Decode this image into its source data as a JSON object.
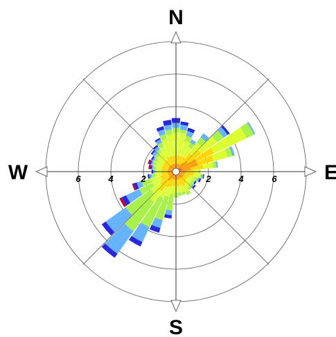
{
  "chart_data": {
    "type": "polar-bar",
    "title": "",
    "cardinals": {
      "north": "N",
      "east": "E",
      "south": "S",
      "west": "W"
    },
    "radial_axis": {
      "max": 8,
      "rings": [
        2,
        4,
        6,
        8
      ],
      "tick_labels": [
        "2",
        "4",
        "6"
      ],
      "grid": true
    },
    "direction_bin_width_deg": 10,
    "band_colors": [
      "#ff4d00",
      "#ff9b00",
      "#ffd700",
      "#dcff32",
      "#aaf04a",
      "#64b4ff",
      "#2828e0",
      "#cc0033"
    ],
    "directions": [
      {
        "dir": 0,
        "bands": [
          0.2,
          0.3,
          0.5,
          1.4,
          0.3,
          0.3,
          0.3,
          0
        ]
      },
      {
        "dir": 10,
        "bands": [
          0.2,
          0.3,
          0.5,
          1.4,
          0.2,
          0.3,
          0.2,
          0
        ]
      },
      {
        "dir": 20,
        "bands": [
          0.2,
          0.3,
          0.5,
          1.0,
          0.3,
          0.3,
          0.2,
          0
        ]
      },
      {
        "dir": 30,
        "bands": [
          0.2,
          0.3,
          0.5,
          0.7,
          0.3,
          0.2,
          0,
          0
        ]
      },
      {
        "dir": 40,
        "bands": [
          0.2,
          0.5,
          0.7,
          0.8,
          0.4,
          0.3,
          0,
          0
        ]
      },
      {
        "dir": 50,
        "bands": [
          0.3,
          0.6,
          1.0,
          1.2,
          0.5,
          0.3,
          0.15,
          0
        ]
      },
      {
        "dir": 60,
        "bands": [
          0.4,
          1.0,
          1.2,
          2.2,
          0.5,
          0.1,
          0,
          0
        ]
      },
      {
        "dir": 70,
        "bands": [
          0.4,
          1.0,
          1.0,
          0.9,
          0.3,
          0.15,
          0,
          0
        ]
      },
      {
        "dir": 80,
        "bands": [
          0.3,
          0.6,
          0.8,
          0.6,
          0.2,
          0.1,
          0,
          0
        ]
      },
      {
        "dir": 90,
        "bands": [
          0.2,
          0.4,
          0.5,
          0.3,
          0.1,
          0,
          0,
          0
        ]
      },
      {
        "dir": 100,
        "bands": [
          0.2,
          0.4,
          0.5,
          0.4,
          0.1,
          0.1,
          0.05,
          0
        ]
      },
      {
        "dir": 110,
        "bands": [
          0.2,
          0.3,
          0.4,
          0.3,
          0.2,
          0.1,
          0.1,
          0
        ]
      },
      {
        "dir": 120,
        "bands": [
          0.2,
          0.3,
          0.3,
          0.3,
          0.2,
          0,
          0.1,
          0
        ]
      },
      {
        "dir": 130,
        "bands": [
          0.2,
          0.3,
          0.3,
          0.3,
          0.2,
          0.1,
          0.1,
          0
        ]
      },
      {
        "dir": 140,
        "bands": [
          0.2,
          0.3,
          0.4,
          0.3,
          0.2,
          0,
          0,
          0
        ]
      },
      {
        "dir": 150,
        "bands": [
          0.2,
          0.3,
          0.5,
          0.4,
          0.2,
          0,
          0,
          0
        ]
      },
      {
        "dir": 160,
        "bands": [
          0.2,
          0.3,
          0.4,
          0.4,
          0.2,
          0,
          0,
          0
        ]
      },
      {
        "dir": 170,
        "bands": [
          0.2,
          0.3,
          0.4,
          0.4,
          0.2,
          0,
          0,
          0
        ]
      },
      {
        "dir": 180,
        "bands": [
          0.2,
          0.3,
          0.4,
          0.4,
          0.3,
          0,
          0,
          0
        ]
      },
      {
        "dir": 190,
        "bands": [
          0.2,
          0.3,
          0.4,
          0.5,
          1.0,
          0.3,
          0.2,
          0
        ]
      },
      {
        "dir": 200,
        "bands": [
          0.2,
          0.3,
          0.5,
          0.6,
          1.5,
          0.5,
          0.3,
          0
        ]
      },
      {
        "dir": 210,
        "bands": [
          0.2,
          0.3,
          0.6,
          0.7,
          2.0,
          1.0,
          0.3,
          0
        ]
      },
      {
        "dir": 220,
        "bands": [
          0.3,
          0.4,
          0.8,
          0.8,
          2.2,
          1.7,
          0.3,
          0
        ]
      },
      {
        "dir": 230,
        "bands": [
          0.2,
          0.3,
          0.7,
          0.7,
          1.9,
          1.5,
          0.3,
          0
        ]
      },
      {
        "dir": 240,
        "bands": [
          0.2,
          0.3,
          0.5,
          0.6,
          0.9,
          0.9,
          0.3,
          0.15
        ]
      },
      {
        "dir": 250,
        "bands": [
          0.2,
          0.3,
          0.5,
          0.6,
          0.6,
          0.3,
          0.2,
          0.1
        ]
      },
      {
        "dir": 260,
        "bands": [
          0.2,
          0.3,
          0.4,
          0.4,
          0.2,
          0.15,
          0.1,
          0
        ]
      },
      {
        "dir": 270,
        "bands": [
          0.2,
          0.3,
          0.4,
          0.3,
          0.1,
          0.1,
          0.1,
          0
        ]
      },
      {
        "dir": 280,
        "bands": [
          0.2,
          0.3,
          0.4,
          0.3,
          0.2,
          0.1,
          0.1,
          0.1
        ]
      },
      {
        "dir": 290,
        "bands": [
          0.2,
          0.3,
          0.4,
          0.4,
          0.2,
          0.1,
          0.1,
          0.1
        ]
      },
      {
        "dir": 300,
        "bands": [
          0.2,
          0.3,
          0.4,
          0.4,
          0.2,
          0.1,
          0.1,
          0
        ]
      },
      {
        "dir": 310,
        "bands": [
          0.2,
          0.3,
          0.4,
          0.5,
          0.2,
          0.2,
          0.1,
          0
        ]
      },
      {
        "dir": 320,
        "bands": [
          0.2,
          0.3,
          0.4,
          0.6,
          0.2,
          0.2,
          0.1,
          0
        ]
      },
      {
        "dir": 330,
        "bands": [
          0.2,
          0.3,
          0.5,
          0.7,
          0.3,
          0.2,
          0.1,
          0
        ]
      },
      {
        "dir": 340,
        "bands": [
          0.2,
          0.3,
          0.5,
          1.1,
          0.3,
          0.3,
          0.2,
          0
        ]
      },
      {
        "dir": 350,
        "bands": [
          0.2,
          0.3,
          0.5,
          1.3,
          0.3,
          0.3,
          0.3,
          0
        ]
      }
    ]
  }
}
